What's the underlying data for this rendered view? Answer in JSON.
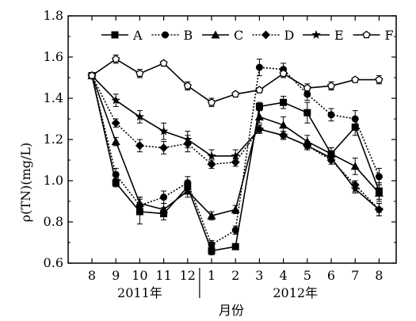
{
  "chart_data": {
    "type": "line",
    "title": "",
    "ylabel": "ρ(TN)(mg/L)",
    "xlabel": "月份",
    "x_tick_labels": [
      "8",
      "9",
      "10",
      "11",
      "12",
      "1",
      "2",
      "3",
      "4",
      "5",
      "6",
      "7",
      "8"
    ],
    "year_labels": [
      {
        "label": "2011年",
        "from_index": 0,
        "to_index": 4
      },
      {
        "label": "2012年",
        "from_index": 5,
        "to_index": 12
      }
    ],
    "ylim": [
      0.6,
      1.8
    ],
    "y_ticks": [
      0.6,
      0.8,
      1.0,
      1.2,
      1.4,
      1.6,
      1.8
    ],
    "legend_placement": "top",
    "series": [
      {
        "name": "A",
        "marker": "square",
        "line": "solid",
        "values": [
          1.51,
          0.99,
          0.85,
          0.84,
          0.97,
          0.66,
          0.68,
          1.36,
          1.38,
          1.33,
          1.13,
          1.26,
          0.95
        ],
        "errors": [
          0.01,
          0.02,
          0.06,
          0.03,
          0.03,
          0.02,
          0.01,
          0.02,
          0.03,
          0.05,
          0.03,
          0.04,
          0.04
        ]
      },
      {
        "name": "B",
        "marker": "circle",
        "line": "dotted",
        "values": [
          1.51,
          1.03,
          0.88,
          0.92,
          0.99,
          0.69,
          0.76,
          1.55,
          1.54,
          1.42,
          1.32,
          1.3,
          1.02
        ],
        "errors": [
          0.01,
          0.03,
          0.04,
          0.03,
          0.03,
          0.02,
          0.02,
          0.04,
          0.03,
          0.03,
          0.03,
          0.04,
          0.04
        ]
      },
      {
        "name": "C",
        "marker": "triangle",
        "line": "solid",
        "values": [
          1.51,
          1.19,
          0.89,
          0.86,
          0.95,
          0.83,
          0.86,
          1.31,
          1.27,
          1.19,
          1.13,
          1.07,
          0.94
        ],
        "errors": [
          0.01,
          0.02,
          0.03,
          0.03,
          0.03,
          0.02,
          0.02,
          0.03,
          0.04,
          0.03,
          0.03,
          0.04,
          0.04
        ]
      },
      {
        "name": "D",
        "marker": "diamond",
        "line": "dotted",
        "values": [
          1.51,
          1.28,
          1.17,
          1.16,
          1.18,
          1.08,
          1.09,
          1.25,
          1.22,
          1.17,
          1.1,
          0.98,
          0.86
        ],
        "errors": [
          0.01,
          0.02,
          0.03,
          0.03,
          0.04,
          0.02,
          0.02,
          0.02,
          0.02,
          0.02,
          0.02,
          0.02,
          0.03
        ]
      },
      {
        "name": "E",
        "marker": "star",
        "line": "solid",
        "values": [
          1.51,
          1.39,
          1.31,
          1.24,
          1.2,
          1.12,
          1.12,
          1.25,
          1.22,
          1.17,
          1.11,
          0.96,
          0.86
        ],
        "errors": [
          0.01,
          0.03,
          0.03,
          0.04,
          0.04,
          0.03,
          0.03,
          0.02,
          0.02,
          0.02,
          0.02,
          0.02,
          0.03
        ]
      },
      {
        "name": "F",
        "marker": "pentagon-open",
        "line": "solid",
        "values": [
          1.51,
          1.59,
          1.52,
          1.57,
          1.46,
          1.38,
          1.42,
          1.44,
          1.52,
          1.45,
          1.46,
          1.49,
          1.49
        ],
        "errors": [
          0.01,
          0.02,
          0.02,
          0.01,
          0.02,
          0.02,
          0.01,
          0.01,
          0.02,
          0.02,
          0.02,
          0.01,
          0.02
        ]
      }
    ]
  }
}
